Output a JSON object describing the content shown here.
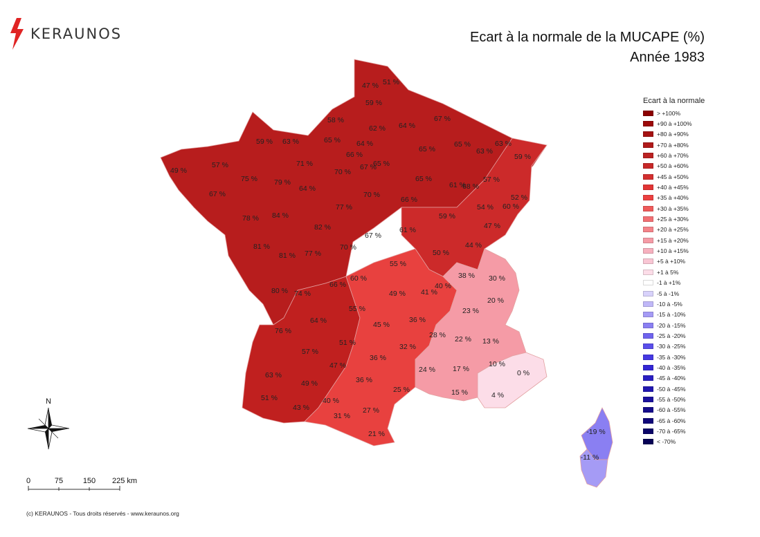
{
  "logo": {
    "text": "KERAUNOS",
    "icon": "lightning-bolt-icon"
  },
  "title": {
    "line1": "Ecart à la normale de la MUCAPE (%)",
    "line2": "Année 1983"
  },
  "legend": {
    "title": "Ecart à la normale",
    "items": [
      {
        "label": "> +100%",
        "color": "#8b0000"
      },
      {
        "label": "+90 à +100%",
        "color": "#9c0a0a"
      },
      {
        "label": "+80 à +90%",
        "color": "#a51212"
      },
      {
        "label": "+70 à +80%",
        "color": "#b01a1a"
      },
      {
        "label": "+60 à +70%",
        "color": "#bb2222"
      },
      {
        "label": "+50 à +60%",
        "color": "#c72828"
      },
      {
        "label": "+45 à +50%",
        "color": "#d32f2f"
      },
      {
        "label": "+40 à +45%",
        "color": "#e23535"
      },
      {
        "label": "+35 à +40%",
        "color": "#ec4040"
      },
      {
        "label": "+30 à +35%",
        "color": "#ef5a5a"
      },
      {
        "label": "+25 à +30%",
        "color": "#f26f73"
      },
      {
        "label": "+20 à +25%",
        "color": "#f48389"
      },
      {
        "label": "+15 à +20%",
        "color": "#f59ba6"
      },
      {
        "label": "+10 à +15%",
        "color": "#f7b1bf"
      },
      {
        "label": "+5 à +10%",
        "color": "#f9c6d4"
      },
      {
        "label": "+1 à 5%",
        "color": "#fcdde8"
      },
      {
        "label": "-1 à +1%",
        "color": "#ffffff"
      },
      {
        "label": "-5 à -1%",
        "color": "#d8d2fb"
      },
      {
        "label": "-10 à -5%",
        "color": "#c0b8f8"
      },
      {
        "label": "-15 à -10%",
        "color": "#a59bf5"
      },
      {
        "label": "-20 à -15%",
        "color": "#8a7ff2"
      },
      {
        "label": "-25 à -20%",
        "color": "#6f63ee"
      },
      {
        "label": "-30 à -25%",
        "color": "#5a4eea"
      },
      {
        "label": "-35 à -30%",
        "color": "#4538e2"
      },
      {
        "label": "-40 à -35%",
        "color": "#3326d4"
      },
      {
        "label": "-45 à -40%",
        "color": "#2a1fc2"
      },
      {
        "label": "-50 à -45%",
        "color": "#2218b0"
      },
      {
        "label": "-55 à -50%",
        "color": "#1c129e"
      },
      {
        "label": "-60 à -55%",
        "color": "#160d8c"
      },
      {
        "label": "-65 à -60%",
        "color": "#10087a"
      },
      {
        "label": "-70 à -65%",
        "color": "#0b0568"
      },
      {
        "label": "< -70%",
        "color": "#060255"
      }
    ]
  },
  "map": {
    "regions": {
      "northwest_color": "#b71d1d",
      "center_color": "#c52626",
      "east_color": "#cc2a2a",
      "southwest_color": "#c0201f",
      "south_color": "#e8413f",
      "southeast_color": "#f59ba6",
      "riviera_color": "#fcdde8",
      "corsica_north_color": "#8a7ff2",
      "corsica_south_color": "#a59bf5"
    },
    "department_values": [
      "47 %",
      "51 %",
      "59 %",
      "58 %",
      "62 %",
      "64 %",
      "67 %",
      "59 %",
      "63 %",
      "65 %",
      "64 %",
      "66 %",
      "65 %",
      "65 %",
      "65 %",
      "63 %",
      "63 %",
      "59 %",
      "49 %",
      "57 %",
      "71 %",
      "70 %",
      "67 %",
      "65 %",
      "68 %",
      "75 %",
      "79 %",
      "64 %",
      "61 %",
      "57 %",
      "67 %",
      "70 %",
      "66 %",
      "77 %",
      "52 %",
      "54 %",
      "60 %",
      "78 %",
      "84 %",
      "82 %",
      "59 %",
      "47 %",
      "61 %",
      "67 %",
      "81 %",
      "81 %",
      "77 %",
      "70 %",
      "44 %",
      "50 %",
      "55 %",
      "38 %",
      "30 %",
      "60 %",
      "66 %",
      "40 %",
      "41 %",
      "49 %",
      "80 %",
      "74 %",
      "20 %",
      "23 %",
      "55 %",
      "36 %",
      "64 %",
      "45 %",
      "28 %",
      "22 %",
      "13 %",
      "76 %",
      "51 %",
      "32 %",
      "57 %",
      "36 %",
      "10 %",
      "47 %",
      "24 %",
      "17 %",
      "0 %",
      "63 %",
      "36 %",
      "49 %",
      "25 %",
      "15 %",
      "4 %",
      "51 %",
      "40 %",
      "43 %",
      "27 %",
      "31 %",
      "21 %",
      "-19 %",
      "-11 %"
    ]
  },
  "compass": {
    "label": "N"
  },
  "scale": {
    "labels": [
      "0",
      "75",
      "150",
      "225 km"
    ]
  },
  "copyright": "(c) KERAUNOS - Tous droits réservés - www.keraunos.org"
}
